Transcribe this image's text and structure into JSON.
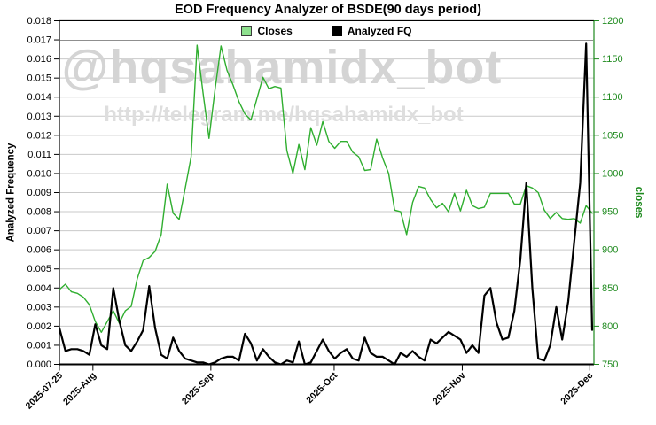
{
  "title": "EOD Frequency Analyzer of BSDE(90 days period)",
  "watermark": {
    "line1": "@hqsahamidx_bot",
    "line2": "http://telegram.me/hqsahamidx_bot"
  },
  "legend": {
    "items": [
      {
        "label": "Closes",
        "swatch_color": "#8ee08e",
        "swatch_border": "#3a3a3a"
      },
      {
        "label": "Analyzed FQ",
        "swatch_color": "#000000",
        "swatch_border": "#000000"
      }
    ]
  },
  "colors": {
    "closes_line": "#2fae2f",
    "analyzed_fq_line": "#000000",
    "right_axis_text": "#1e8a1e",
    "left_axis_text": "#000000",
    "gridline": "#c9c9c9",
    "watermark_large": "#d4d4d4",
    "watermark_small": "#dedede"
  },
  "chart_data": {
    "type": "line",
    "title": "EOD Frequency Analyzer of BSDE(90 days period)",
    "grid": "horizontal-only",
    "legend_position": "top-center",
    "x_axis": {
      "points_count": 90,
      "tick_labels": [
        "2025-07-25",
        "2025-Aug",
        "2025-Sep",
        "2025-Oct",
        "2025-Nov",
        "2025-Dec"
      ],
      "tick_positions": [
        0,
        5.6,
        25.3,
        45.9,
        67.3,
        88.6
      ]
    },
    "left_axis": {
      "label": "Analyzed Frequency",
      "min": 0,
      "max": 0.018,
      "step": 0.001
    },
    "right_axis": {
      "label": "closes",
      "min": 750,
      "max": 1200,
      "step": 50
    },
    "series": [
      {
        "name": "Closes",
        "axis": "right",
        "color": "#2fae2f",
        "values": [
          848,
          855,
          845,
          843,
          838,
          828,
          806,
          792,
          806,
          820,
          804,
          820,
          826,
          862,
          886,
          890,
          898,
          920,
          986,
          948,
          940,
          980,
          1022,
          1168,
          1105,
          1046,
          1110,
          1167,
          1135,
          1116,
          1094,
          1078,
          1070,
          1098,
          1126,
          1111,
          1114,
          1112,
          1030,
          1000,
          1038,
          1005,
          1060,
          1037,
          1068,
          1042,
          1033,
          1042,
          1042,
          1028,
          1022,
          1004,
          1005,
          1045,
          1020,
          1000,
          952,
          950,
          920,
          962,
          983,
          981,
          966,
          955,
          961,
          950,
          974,
          951,
          978,
          958,
          954,
          956,
          974,
          974,
          974,
          974,
          960,
          960,
          984,
          981,
          975,
          952,
          941,
          949,
          941,
          940,
          941,
          935,
          958,
          948
        ]
      },
      {
        "name": "Analyzed FQ",
        "axis": "left",
        "color": "#000000",
        "values": [
          0.0019,
          0.0007,
          0.0008,
          0.0008,
          0.0007,
          0.0005,
          0.0021,
          0.001,
          0.0008,
          0.004,
          0.0023,
          0.001,
          0.0007,
          0.0012,
          0.0018,
          0.0041,
          0.0019,
          0.0005,
          0.0003,
          0.0014,
          0.0007,
          0.0003,
          0.0002,
          0.0001,
          0.0001,
          0.0,
          0.0001,
          0.0003,
          0.0004,
          0.0004,
          0.0002,
          0.0016,
          0.0011,
          0.0002,
          0.0008,
          0.0004,
          0.0001,
          0.0,
          0.0002,
          0.0001,
          0.0012,
          0.0,
          0.0001,
          0.0007,
          0.0013,
          0.0007,
          0.0003,
          0.0006,
          0.0008,
          0.0003,
          0.0002,
          0.0014,
          0.0006,
          0.0004,
          0.0004,
          0.0002,
          0.0,
          0.0006,
          0.0004,
          0.0007,
          0.0004,
          0.0002,
          0.0013,
          0.0011,
          0.0014,
          0.0017,
          0.0015,
          0.0013,
          0.0006,
          0.001,
          0.0006,
          0.0036,
          0.004,
          0.0022,
          0.0013,
          0.0014,
          0.0028,
          0.0055,
          0.0095,
          0.004,
          0.0003,
          0.0002,
          0.001,
          0.003,
          0.0013,
          0.0033,
          0.0064,
          0.0095,
          0.0168,
          0.0018
        ]
      }
    ]
  }
}
